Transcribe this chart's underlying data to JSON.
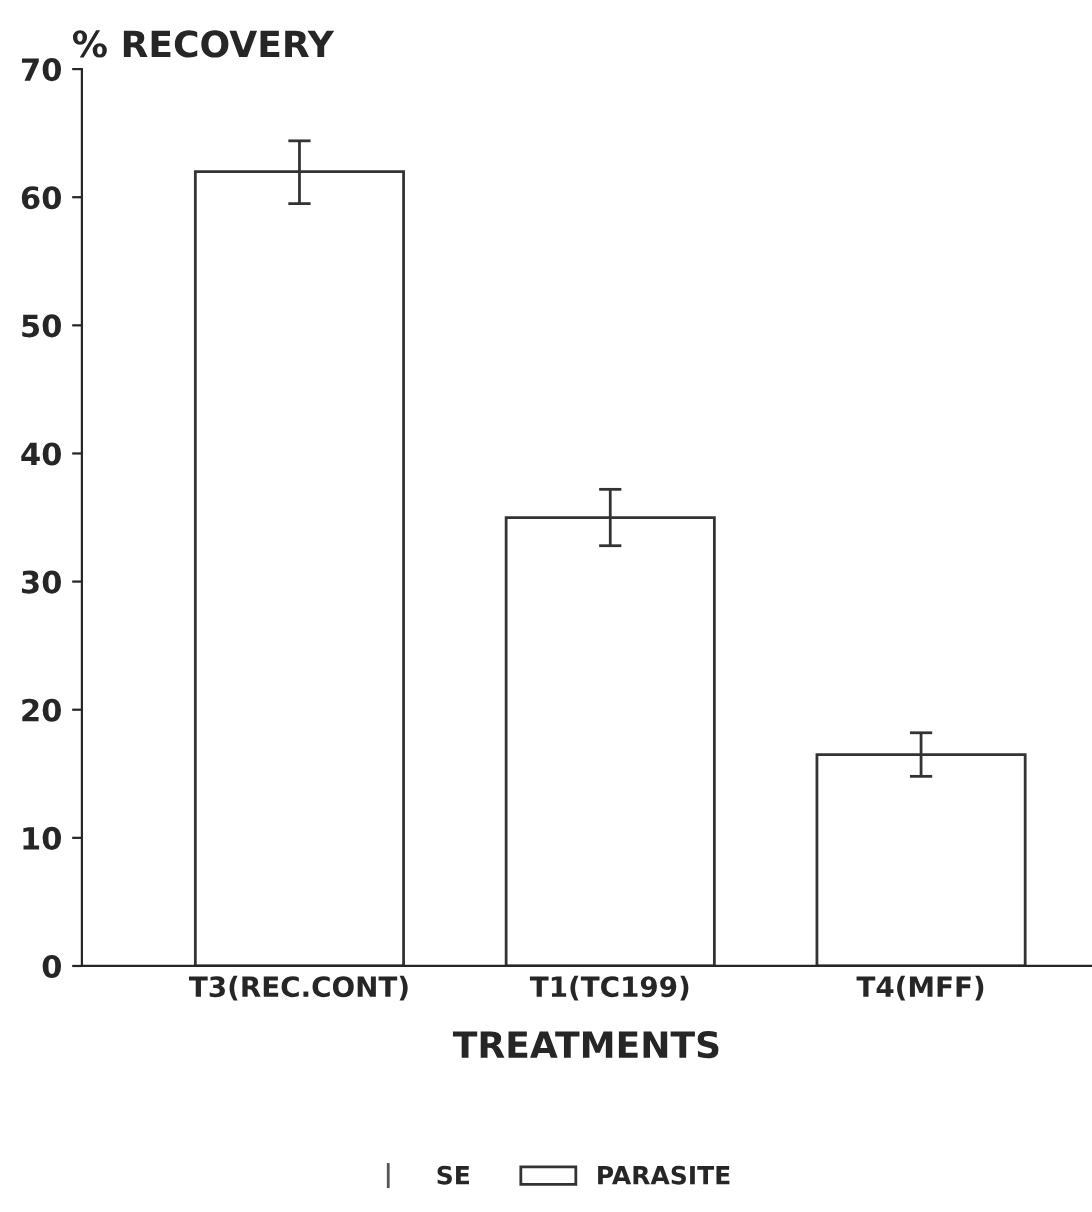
{
  "chart_data": {
    "type": "bar",
    "ylabel": "% RECOVERY",
    "xlabel": "TREATMENTS",
    "categories": [
      "T3(REC.CONT)",
      "T1(TC199)",
      "T4(MFF)"
    ],
    "series": [
      {
        "name": "PARASITE",
        "color": "#ffffff",
        "values": [
          62,
          35,
          16.5
        ],
        "errors": [
          [
            59.5,
            64.4
          ],
          [
            32.8,
            37.2
          ],
          [
            14.8,
            18.2
          ]
        ]
      }
    ],
    "annotations": [
      "SE"
    ],
    "ylim": [
      0,
      70
    ],
    "yticks": [
      0,
      10,
      20,
      30,
      40,
      50,
      60,
      70
    ],
    "grid": false,
    "legend": "bottom"
  }
}
